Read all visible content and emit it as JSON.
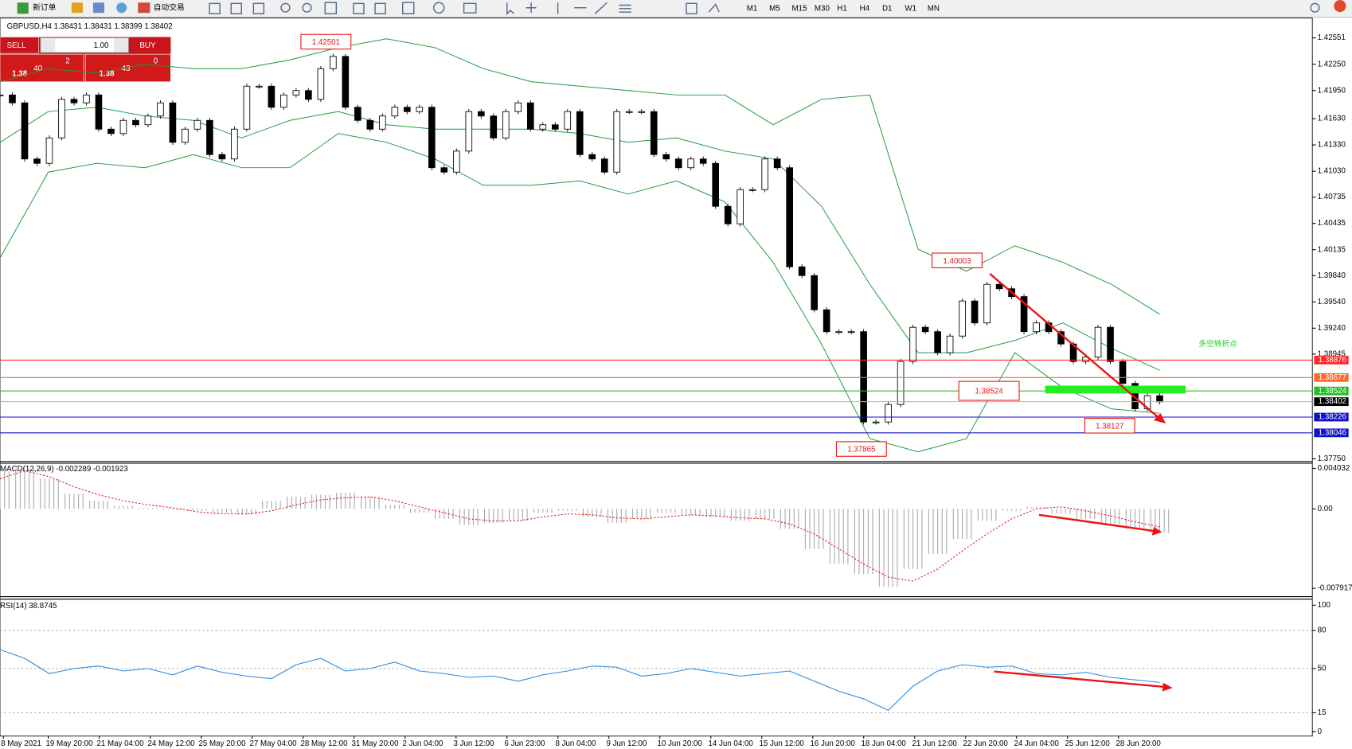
{
  "toolbar": {
    "buttons": [
      "新订单",
      "自动交易"
    ],
    "timeframes": [
      "M1",
      "M5",
      "M15",
      "M30",
      "H1",
      "H4",
      "D1",
      "W1",
      "MN"
    ]
  },
  "symbol_header": "GBPUSD,H4 1.38431 1.38431 1.38399 1.38402",
  "order_panel": {
    "sell": "SELL",
    "lot": "1.00",
    "buy": "BUY",
    "sell_price": {
      "big": "1.38",
      "pips": "40",
      "point": "2"
    },
    "buy_price": {
      "big": "1.38",
      "pips": "43",
      "point": "0"
    }
  },
  "main_chart": {
    "ylim": [
      1.3772,
      1.42767
    ],
    "yticks": [
      1.42551,
      {
        "value": 1.4225,
        "label": "1.42250"
      },
      {
        "value": 1.4195,
        "label": "1.41950"
      },
      {
        "value": 1.4163,
        "label": "1.41630"
      },
      {
        "value": 1.4133,
        "label": "1.41330"
      },
      {
        "value": 1.4103,
        "label": "1.41030"
      },
      1.40735,
      1.40435,
      1.40135,
      {
        "value": 1.3984,
        "label": "1.39840"
      },
      {
        "value": 1.3954,
        "label": "1.39540"
      },
      {
        "value": 1.3924,
        "label": "1.39240"
      },
      1.38945,
      {
        "value": 1.3775,
        "label": "1.37750"
      }
    ],
    "closes": [
      1.419,
      1.4181,
      1.4117,
      1.4112,
      1.4141,
      1.4185,
      1.4181,
      1.419,
      1.4151,
      1.4146,
      1.4161,
      1.4156,
      1.4166,
      1.4181,
      1.4136,
      1.4151,
      1.4161,
      1.4122,
      1.4117,
      1.4151,
      1.42,
      1.42,
      1.4176,
      1.419,
      1.4195,
      1.4185,
      1.422,
      1.4234,
      1.4176,
      1.4161,
      1.4151,
      1.4166,
      1.4176,
      1.4171,
      1.4176,
      1.4107,
      1.4102,
      1.4126,
      1.4171,
      1.4166,
      1.4141,
      1.4171,
      1.4181,
      1.4151,
      1.4156,
      1.4151,
      1.4171,
      1.4122,
      1.4117,
      1.4102,
      1.4171,
      1.4171,
      1.4171,
      1.4122,
      1.4117,
      1.4107,
      1.4117,
      1.4112,
      1.4063,
      1.4043,
      1.4082,
      1.4082,
      1.4117,
      1.4107,
      1.3994,
      1.3984,
      1.3945,
      1.392,
      1.392,
      1.392,
      1.3817,
      1.3817,
      1.3837,
      1.3886,
      1.3925,
      1.392,
      1.3896,
      1.3915,
      1.3955,
      1.393,
      1.3974,
      1.3969,
      1.396,
      1.392,
      1.393,
      1.392,
      1.3906,
      1.3886,
      1.3891,
      1.3925,
      1.3886,
      1.3861,
      1.3832,
      1.3847,
      1.384
    ],
    "bands": {
      "color": "#1a9a3a",
      "upper": [
        1.4205,
        1.422,
        1.4215,
        1.4225,
        1.422,
        1.422,
        1.423,
        1.4244,
        1.4254,
        1.4244,
        1.422,
        1.4205,
        1.42,
        1.4195,
        1.419,
        1.419,
        1.4156,
        1.4185,
        1.419,
        1.4014,
        1.3989,
        1.4018,
        1.3999,
        1.3974,
        1.394
      ],
      "middle": [
        1.4136,
        1.4171,
        1.4176,
        1.4166,
        1.4161,
        1.4141,
        1.4161,
        1.4171,
        1.4156,
        1.4151,
        1.4151,
        1.4151,
        1.4146,
        1.4136,
        1.4141,
        1.4126,
        1.4117,
        1.4063,
        1.3974,
        1.3896,
        1.3896,
        1.391,
        1.393,
        1.3901,
        1.3876
      ],
      "lower": [
        1.4004,
        1.4102,
        1.4112,
        1.4107,
        1.4122,
        1.4107,
        1.4107,
        1.4146,
        1.4136,
        1.4117,
        1.4087,
        1.4087,
        1.4092,
        1.4077,
        1.4092,
        1.4068,
        1.3999,
        1.3906,
        1.3798,
        1.3783,
        1.3798,
        1.3896,
        1.3856,
        1.3832,
        1.3827
      ]
    },
    "levels": [
      {
        "value": 1.38876,
        "color": "#ff2a2a"
      },
      {
        "value": 1.38677,
        "color": "#ff6a2a"
      },
      {
        "value": 1.38524,
        "color": "#22c022"
      },
      {
        "value": 1.38226,
        "color": "#1010c8"
      },
      {
        "value": 1.38046,
        "color": "#1010c8"
      }
    ],
    "current_price": 1.38402,
    "annotations": [
      "1.42501",
      "1.40003",
      "1.38524",
      "1.37865",
      "1.38127"
    ],
    "note": "多空转折点"
  },
  "macd": {
    "label": "MACD(12,26,9) -0.002289 -0.001923",
    "ylim": [
      -0.00866,
      0.00455
    ],
    "yticks": [
      0.004032,
      {
        "value": 0,
        "label": "0.00"
      },
      -0.007917
    ],
    "histogram": [
      0.0038,
      0.004,
      0.003,
      0.0015,
      0.0008,
      0.0003,
      0.0001,
      -0.0001,
      -0.0002,
      -0.0004,
      -0.0006,
      0.0008,
      0.0012,
      0.0014,
      0.0016,
      0.0012,
      0.0004,
      -0.0004,
      -0.001,
      -0.0016,
      -0.0014,
      -0.0012,
      -0.0004,
      -0.0002,
      -0.0008,
      -0.0014,
      -0.001,
      -0.0004,
      -0.0006,
      -0.0008,
      -0.0012,
      -0.001,
      -0.002,
      -0.004,
      -0.0055,
      -0.0065,
      -0.0078,
      -0.006,
      -0.0045,
      -0.003,
      -0.0012,
      -0.0002,
      0.0002,
      -0.0005,
      -0.001,
      -0.0015,
      -0.002,
      -0.0024
    ],
    "signal": [
      0.003,
      0.0038,
      0.0032,
      0.0022,
      0.0014,
      0.0008,
      0.0004,
      0.0001,
      -0.0003,
      -0.0005,
      -0.0005,
      -0.0002,
      0.0004,
      0.0009,
      0.0011,
      0.0012,
      0.0008,
      0.0002,
      -0.0004,
      -0.001,
      -0.0012,
      -0.0012,
      -0.0008,
      -0.0005,
      -0.0006,
      -0.0009,
      -0.001,
      -0.0008,
      -0.0006,
      -0.0007,
      -0.0009,
      -0.001,
      -0.0015,
      -0.0025,
      -0.004,
      -0.0055,
      -0.0068,
      -0.0072,
      -0.006,
      -0.0042,
      -0.0025,
      -0.001,
      0.0,
      0.0002,
      -0.0002,
      -0.0007,
      -0.0013,
      -0.0018
    ]
  },
  "rsi": {
    "label": "RSI(14) 38.8745",
    "ylim": [
      0,
      100
    ],
    "yticks": [
      100,
      80,
      50,
      15,
      0
    ],
    "values": [
      65,
      58,
      46,
      50,
      52,
      48,
      50,
      45,
      52,
      47,
      44,
      42,
      53,
      58,
      48,
      50,
      55,
      48,
      46,
      43,
      44,
      40,
      45,
      48,
      52,
      51,
      44,
      46,
      50,
      47,
      44,
      46,
      48,
      40,
      32,
      26,
      17,
      36,
      48,
      53,
      51,
      52,
      46,
      45,
      47,
      43,
      41,
      39
    ]
  },
  "time_labels": [
    "8 May 2021",
    "19 May 20:00",
    "21 May 04:00",
    "24 May 12:00",
    "25 May 20:00",
    "27 May 04:00",
    "28 May 12:00",
    "31 May 20:00",
    "2 Jun 04:00",
    "3 Jun 12:00",
    "6 Jun 23:00",
    "8 Jun 04:00",
    "9 Jun 12:00",
    "10 Jun 20:00",
    "14 Jun 04:00",
    "15 Jun 12:00",
    "16 Jun 20:00",
    "18 Jun 04:00",
    "21 Jun 12:00",
    "22 Jun 20:00",
    "24 Jun 04:00",
    "25 Jun 12:00",
    "28 Jun 20:00"
  ]
}
